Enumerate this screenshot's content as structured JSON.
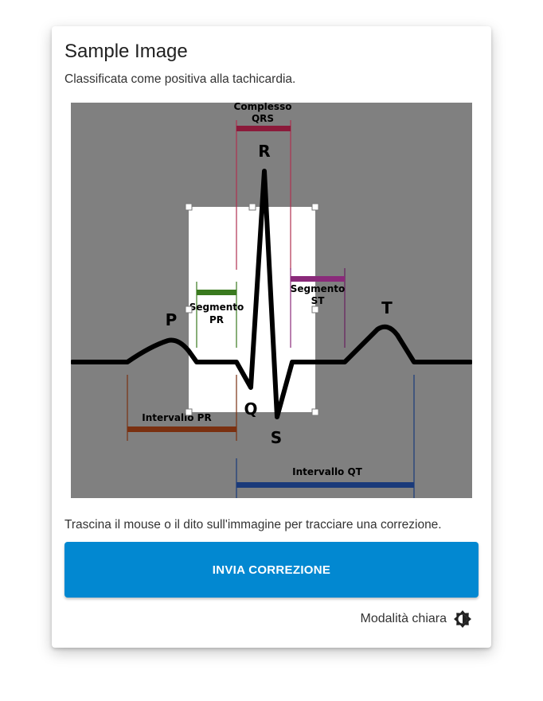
{
  "card": {
    "title": "Sample Image",
    "subtitle": "Classificata come positiva alla tachicardia.",
    "hint": "Trascina il mouse o il dito sull'immagine per tracciare una correzione.",
    "submit_label": "INVIA CORREZIONE",
    "theme_label": "Modalità chiara"
  },
  "ecg": {
    "label_p": "P",
    "label_q": "Q",
    "label_r": "R",
    "label_s": "S",
    "label_t": "T",
    "qrs_line1": "Complesso",
    "qrs_line2": "QRS",
    "pr_seg_line1": "Segmento",
    "pr_seg_line2": "PR",
    "st_seg_line1": "Segmento",
    "st_seg_line2": "ST",
    "pr_interval": "Intervallo PR",
    "qt_interval": "Intervallo QT"
  },
  "colors": {
    "accent": "#0288d1",
    "background_gray": "#808080",
    "qrs_color": "#8b1a3a",
    "pr_segment_color": "#3a7a1f",
    "st_segment_color": "#8a2a7a",
    "pr_interval_color": "#7a3010",
    "qt_interval_color": "#1a3a7a"
  }
}
